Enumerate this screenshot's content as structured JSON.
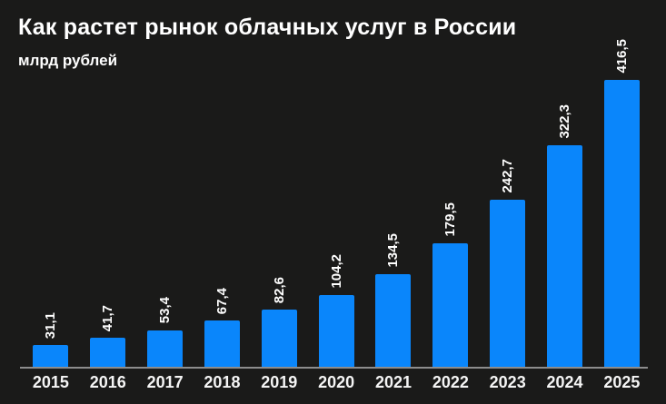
{
  "page": {
    "background_color": "#1a1a19",
    "text_color": "#ffffff"
  },
  "chart_data": {
    "type": "bar",
    "title": "Как растет рынок облачных услуг в России",
    "ylabel": "млрд рублей",
    "xlabel": "",
    "categories": [
      "2015",
      "2016",
      "2017",
      "2018",
      "2019",
      "2020",
      "2021",
      "2022",
      "2023",
      "2024",
      "2025"
    ],
    "values": [
      31.1,
      41.7,
      53.4,
      67.4,
      82.6,
      104.2,
      134.5,
      179.5,
      242.7,
      322.3,
      416.5
    ],
    "value_labels": [
      "31,1",
      "41,7",
      "53,4",
      "67,4",
      "82,6",
      "104,2",
      "134,5",
      "179,5",
      "242,7",
      "322,3",
      "416,5"
    ],
    "value_label_rotation": -90,
    "ylim": [
      0,
      440
    ],
    "grid": false,
    "legend_position": "none",
    "bar_color": "#0a86fb",
    "axis_line_color": "#8d8d8d",
    "label_color": "#ffffff"
  }
}
